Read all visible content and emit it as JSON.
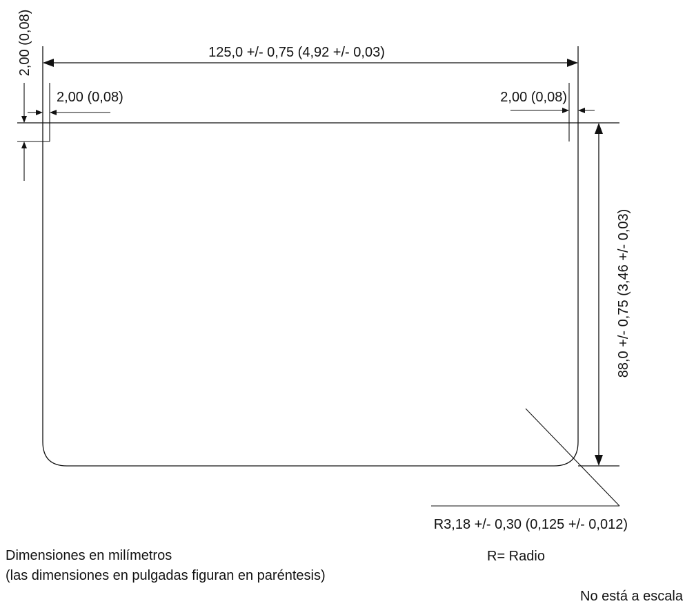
{
  "dimensions": {
    "overall_width": "125,0 +/- 0,75 (4,92 +/- 0,03)",
    "overall_height": "88,0 +/- 0,75 (3,46 +/- 0,03)",
    "corner_offset_left": "2,00 (0,08)",
    "corner_offset_right": "2,00 (0,08)",
    "corner_offset_vertical": "2,00 (0,08)",
    "corner_radius": "R3,18 +/- 0,30 (0,125 +/- 0,012)"
  },
  "notes": {
    "radius_legend": "R= Radio",
    "units_line1": "Dimensiones en milímetros",
    "units_line2": "(las dimensiones en pulgadas figuran en paréntesis)",
    "scale": "No está a escala"
  }
}
